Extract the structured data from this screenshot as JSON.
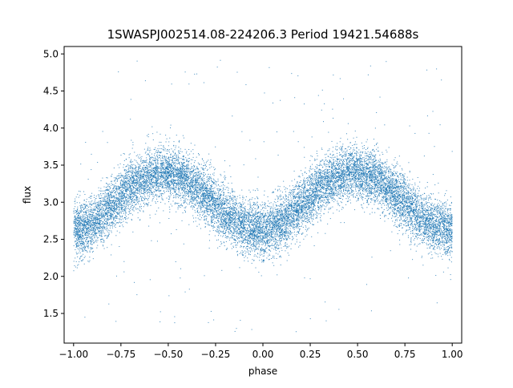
{
  "chart_data": {
    "type": "scatter",
    "title": "1SWASPJ002514.08-224206.3 Period 19421.54688s",
    "xlabel": "phase",
    "ylabel": "flux",
    "xlim": [
      -1.05,
      1.05
    ],
    "ylim": [
      1.1,
      5.1
    ],
    "xticks": [
      -1.0,
      -0.75,
      -0.5,
      -0.25,
      0.0,
      0.25,
      0.5,
      0.75,
      1.0
    ],
    "xtick_labels": [
      "−1.00",
      "−0.75",
      "−0.50",
      "−0.25",
      "0.00",
      "0.25",
      "0.50",
      "0.75",
      "1.00"
    ],
    "yticks": [
      1.5,
      2.0,
      2.5,
      3.0,
      3.5,
      4.0,
      4.5,
      5.0
    ],
    "ytick_labels": [
      "1.5",
      "2.0",
      "2.5",
      "3.0",
      "3.5",
      "4.0",
      "4.5",
      "5.0"
    ],
    "grid": false,
    "legend": "none",
    "marker_color": "#1f77b4",
    "series": [
      {
        "trend": {
          "phase": [
            -1.0,
            -0.9,
            -0.8,
            -0.7,
            -0.6,
            -0.5,
            -0.4,
            -0.3,
            -0.2,
            -0.1,
            0.0,
            0.1,
            0.2,
            0.3,
            0.4,
            0.5,
            0.6,
            0.7,
            0.8,
            0.9,
            1.0
          ],
          "flux": [
            2.62,
            2.7,
            2.95,
            3.2,
            3.36,
            3.4,
            3.3,
            3.08,
            2.85,
            2.68,
            2.6,
            2.72,
            2.95,
            3.2,
            3.36,
            3.4,
            3.32,
            3.1,
            2.87,
            2.68,
            2.62
          ]
        },
        "scatter_sigma": 0.18,
        "n_points": 15000,
        "outlier_range": [
          1.25,
          4.95
        ]
      }
    ]
  }
}
